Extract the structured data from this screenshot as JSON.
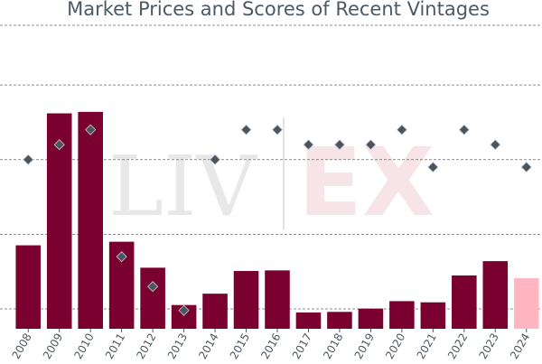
{
  "chart_data": {
    "type": "bar",
    "title": "Market Prices and Scores of Recent Vintages",
    "categories": [
      "2008",
      "2009",
      "2010",
      "2011",
      "2012",
      "2013",
      "2014",
      "2015",
      "2016",
      "2017",
      "2018",
      "2019",
      "2020",
      "2021",
      "2022",
      "2023",
      "2024"
    ],
    "series": [
      {
        "kind": "bar",
        "values": [
          26.3,
          70.5,
          71.0,
          27.5,
          18.8,
          6.3,
          10.1,
          17.7,
          17.9,
          3.8,
          4.0,
          5.1,
          7.6,
          7.2,
          16.2,
          21.0,
          15.3
        ],
        "colors": [
          "#7a0030",
          "#7a0030",
          "#7a0030",
          "#7a0030",
          "#7a0030",
          "#7a0030",
          "#7a0030",
          "#7a0030",
          "#7a0030",
          "#7a0030",
          "#7a0030",
          "#7a0030",
          "#7a0030",
          "#7a0030",
          "#7a0030",
          "#7a0030",
          "#ffb6c1"
        ]
      },
      {
        "kind": "scatter",
        "marker": "diamond",
        "color": "#4b5560",
        "values": [
          55.0,
          60.0,
          65.0,
          22.5,
          12.5,
          4.5,
          55.0,
          65.0,
          65.0,
          60.0,
          60.0,
          60.0,
          65.0,
          52.5,
          65.0,
          60.0,
          52.5
        ]
      }
    ],
    "ylim": [
      5,
      100
    ],
    "grid": true
  },
  "watermark": {
    "left": "LIV",
    "right": "EX"
  }
}
